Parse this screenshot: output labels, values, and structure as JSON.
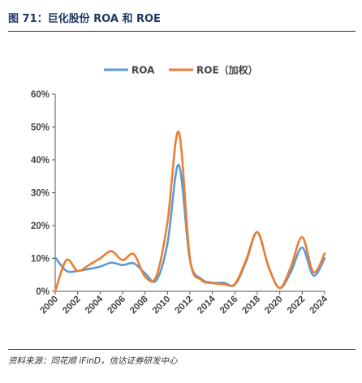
{
  "figure": {
    "title": "图 71：巨化股份 ROA 和 ROE",
    "source": "资料来源：同花顺 iFinD，信达证券研发中心"
  },
  "chart_data": {
    "type": "line",
    "title": "",
    "xlabel": "",
    "ylabel": "",
    "ylim": [
      0,
      60
    ],
    "y_ticks": [
      "0%",
      "10%",
      "20%",
      "30%",
      "40%",
      "50%",
      "60%"
    ],
    "x_range": [
      2000,
      2024
    ],
    "x_ticks": [
      "2000",
      "2002",
      "2004",
      "2006",
      "2008",
      "2010",
      "2012",
      "2014",
      "2016",
      "2018",
      "2020",
      "2022",
      "2024"
    ],
    "legend_position": "top-center",
    "grid": false,
    "x": [
      2000,
      2001,
      2002,
      2003,
      2004,
      2005,
      2006,
      2007,
      2008,
      2009,
      2010,
      2011,
      2012,
      2013,
      2014,
      2015,
      2016,
      2017,
      2018,
      2019,
      2020,
      2021,
      2022,
      2023,
      2024
    ],
    "series": [
      {
        "name": "ROA",
        "color": "#5b9bd5",
        "values": [
          10.3,
          6.2,
          6.2,
          6.8,
          7.5,
          8.7,
          8.0,
          8.5,
          5.5,
          3.3,
          14.5,
          38.5,
          9.5,
          3.8,
          2.6,
          2.6,
          2.0,
          9.0,
          18.0,
          7.5,
          1.0,
          6.0,
          13.3,
          4.8,
          10.0
        ]
      },
      {
        "name": "ROE（加权）",
        "color": "#ed7d31",
        "values": [
          0.0,
          9.5,
          6.2,
          8.0,
          10.0,
          12.2,
          9.5,
          11.3,
          4.5,
          4.5,
          21.0,
          48.5,
          10.0,
          3.5,
          2.5,
          2.2,
          2.2,
          9.5,
          18.0,
          7.5,
          1.0,
          7.5,
          16.5,
          5.8,
          11.5
        ]
      }
    ]
  }
}
